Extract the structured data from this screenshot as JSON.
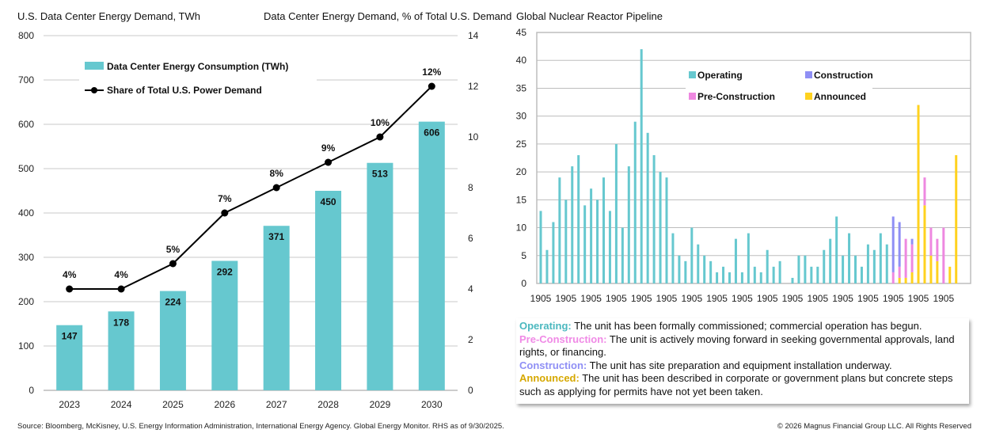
{
  "chart_data": [
    {
      "type": "bar+line",
      "title_left": "U.S. Data Center Energy Demand, TWh",
      "title_right": "Data Center Energy Demand, % of Total U.S. Demand",
      "categories": [
        "2023",
        "2024",
        "2025",
        "2026",
        "2027",
        "2028",
        "2029",
        "2030"
      ],
      "series": [
        {
          "name": "Data Center Energy Consumption (TWh)",
          "type": "bar",
          "axis": "left",
          "color": "#66c8cf",
          "values": [
            147,
            178,
            224,
            292,
            371,
            450,
            513,
            606
          ]
        },
        {
          "name": "Share of Total U.S. Power Demand",
          "type": "line",
          "axis": "right",
          "color": "#000000",
          "values": [
            4,
            4,
            5,
            7,
            8,
            9,
            10,
            12
          ],
          "labels": [
            "4%",
            "4%",
            "5%",
            "7%",
            "8%",
            "9%",
            "10%",
            "12%"
          ]
        }
      ],
      "ylim_left": [
        0,
        800
      ],
      "yticks_left": [
        0,
        100,
        200,
        300,
        400,
        500,
        600,
        700,
        800
      ],
      "ylim_right": [
        0,
        14
      ],
      "yticks_right": [
        0,
        2,
        4,
        6,
        8,
        10,
        12,
        14
      ],
      "grid": true,
      "legend": "top-left"
    },
    {
      "type": "stacked-bar",
      "title": "Global Nuclear Reactor Pipeline",
      "x_tick_labels": [
        "1905",
        "1905",
        "1905",
        "1905",
        "1905",
        "1905",
        "1905",
        "1905",
        "1905",
        "1905",
        "1905",
        "1905",
        "1905",
        "1905",
        "1905",
        "1905",
        "1905"
      ],
      "ylim": [
        0,
        45
      ],
      "yticks": [
        0,
        5,
        10,
        15,
        20,
        25,
        30,
        35,
        40,
        45
      ],
      "grid": true,
      "legend": "top-center",
      "series": [
        {
          "name": "Operating",
          "color": "#66c8cf",
          "values": [
            13,
            6,
            11,
            19,
            15,
            21,
            23,
            14,
            17,
            15,
            19,
            13,
            25,
            10,
            21,
            29,
            42,
            27,
            23,
            20,
            19,
            9,
            5,
            4,
            10,
            7,
            5,
            4,
            2,
            3,
            2,
            8,
            2,
            9,
            3,
            2,
            6,
            3,
            4,
            0,
            1,
            5,
            5,
            3,
            3,
            6,
            8,
            12,
            5,
            9,
            5,
            3,
            7,
            6,
            9,
            7,
            0,
            0,
            0,
            0,
            0,
            0,
            0,
            0,
            0,
            0,
            0
          ]
        },
        {
          "name": "Announced",
          "color": "#ffd21f",
          "values": [
            0,
            0,
            0,
            0,
            0,
            0,
            0,
            0,
            0,
            0,
            0,
            0,
            0,
            0,
            0,
            0,
            0,
            0,
            0,
            0,
            0,
            0,
            0,
            0,
            0,
            0,
            0,
            0,
            0,
            0,
            0,
            0,
            0,
            0,
            0,
            0,
            0,
            0,
            0,
            0,
            0,
            0,
            0,
            0,
            0,
            0,
            0,
            0,
            0,
            0,
            0,
            0,
            0,
            0,
            0,
            0,
            0,
            1,
            1,
            2,
            32,
            14,
            5,
            4,
            0,
            3,
            23
          ]
        },
        {
          "name": "Pre-Construction",
          "color": "#ee88e0",
          "values": [
            0,
            0,
            0,
            0,
            0,
            0,
            0,
            0,
            0,
            0,
            0,
            0,
            0,
            0,
            0,
            0,
            0,
            0,
            0,
            0,
            0,
            0,
            0,
            0,
            0,
            0,
            0,
            0,
            0,
            0,
            0,
            0,
            0,
            0,
            0,
            0,
            0,
            0,
            0,
            0,
            0,
            0,
            0,
            0,
            0,
            0,
            0,
            0,
            0,
            0,
            0,
            0,
            0,
            0,
            0,
            0,
            2,
            2,
            7,
            5,
            0,
            5,
            5,
            4,
            10,
            0,
            0
          ]
        },
        {
          "name": "Construction",
          "color": "#8f8ff5",
          "values": [
            0,
            0,
            0,
            0,
            0,
            0,
            0,
            0,
            0,
            0,
            0,
            0,
            0,
            0,
            0,
            0,
            0,
            0,
            0,
            0,
            0,
            0,
            0,
            0,
            0,
            0,
            0,
            0,
            0,
            0,
            0,
            0,
            0,
            0,
            0,
            0,
            0,
            0,
            0,
            0,
            0,
            0,
            0,
            0,
            0,
            0,
            0,
            0,
            0,
            0,
            0,
            0,
            0,
            0,
            0,
            0,
            10,
            8,
            0,
            1,
            0,
            0,
            0,
            0,
            0,
            0,
            0
          ]
        }
      ],
      "legend_order": [
        "Operating",
        "Construction",
        "Pre-Construction",
        "Announced"
      ]
    }
  ],
  "notes": [
    {
      "term": "Operating:",
      "text": " The unit has been formally commissioned; commercial operation has begun.",
      "color": "#4bb8bf"
    },
    {
      "term": "Pre-Construction:",
      "text": " The unit is actively moving forward in seeking governmental approvals, land rights, or financing.",
      "color": "#f08ae6"
    },
    {
      "term": "Construction:",
      "text": " The unit has site preparation and equipment installation underway.",
      "color": "#8f8ff5"
    },
    {
      "term": "Announced:",
      "text": " The unit has been described in corporate or government plans but concrete steps such as applying for permits have not yet been taken.",
      "color": "#d6a800"
    }
  ],
  "footer": {
    "source": "Source: Bloomberg, McKisney, U.S. Energy Information Administration, International Energy Agency. Global Energy Monitor. RHS as of 9/30/2025.",
    "copyright": "© 2026 Magnus Financial Group LLC. All Rights Reserved"
  }
}
